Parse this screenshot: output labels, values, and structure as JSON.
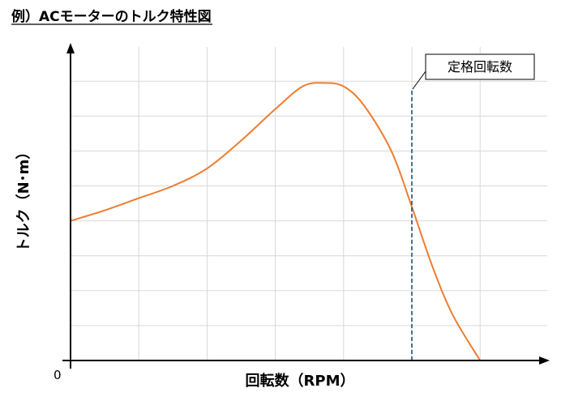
{
  "title": "例）ACモーターのトルク特性図",
  "chart_data": {
    "type": "line",
    "title": "例）ACモーターのトルク特性図",
    "xlabel": "回転数（RPM）",
    "ylabel": "トルク（N･m）",
    "origin_label": "0",
    "xlim": [
      0,
      7
    ],
    "ylim": [
      0,
      9
    ],
    "grid": true,
    "series": [
      {
        "color": "#ED7D31",
        "x": [
          0,
          0.5,
          1,
          1.5,
          2,
          2.5,
          3,
          3.4,
          3.7,
          4,
          4.3,
          4.7,
          5,
          5.3,
          5.6,
          6.0
        ],
        "y": [
          4.0,
          4.3,
          4.65,
          5.0,
          5.5,
          6.3,
          7.2,
          7.85,
          7.95,
          7.85,
          7.3,
          6.0,
          4.4,
          2.7,
          1.3,
          0.0
        ]
      }
    ],
    "annotations": [
      {
        "label": "定格回転数",
        "x": 5.0,
        "style": "dashed",
        "color": "#1F4E79"
      }
    ]
  }
}
